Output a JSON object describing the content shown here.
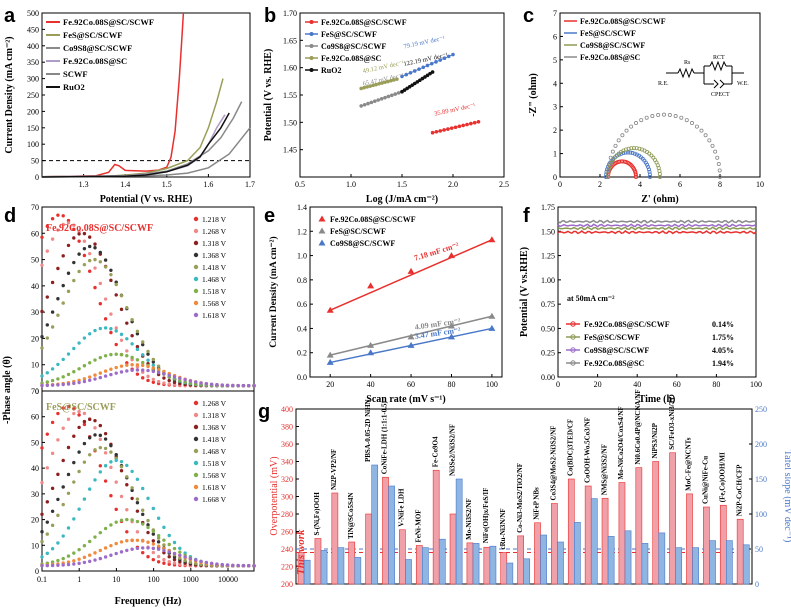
{
  "colors": {
    "red": "#e8302e",
    "blue": "#4a78c9",
    "green": "#8c9a55",
    "gray": "#8a8a8a",
    "black": "#111111",
    "pink": "#f0a0a8",
    "lblue": "#7aaee0",
    "purple": "#9c6cc8",
    "orange": "#f08a3c",
    "teal": "#3cb8c0"
  },
  "panels": {
    "a": "a",
    "b": "b",
    "c": "c",
    "d": "d",
    "e": "e",
    "f": "f",
    "g": "g"
  },
  "chart_data": [
    {
      "id": "a",
      "type": "line",
      "xlabel": "Potential (V vs. RHE)",
      "ylabel": "Current Density (mA cm⁻²)",
      "xlim": [
        1.2,
        1.7
      ],
      "ylim": [
        0,
        500
      ],
      "xticks": [
        1.3,
        1.4,
        1.5,
        1.6,
        1.7
      ],
      "yticks": [
        0,
        50,
        100,
        150,
        200,
        250,
        300,
        350,
        400,
        450,
        500
      ],
      "ref_line": 50,
      "series": [
        {
          "name": "Fe.92Co.08S@SC/SCWF",
          "color": "#e8302e",
          "points": [
            [
              1.2,
              1
            ],
            [
              1.33,
              4
            ],
            [
              1.36,
              14
            ],
            [
              1.375,
              38
            ],
            [
              1.385,
              34
            ],
            [
              1.4,
              20
            ],
            [
              1.45,
              18
            ],
            [
              1.48,
              21
            ],
            [
              1.5,
              30
            ],
            [
              1.51,
              60
            ],
            [
              1.52,
              140
            ],
            [
              1.53,
              300
            ],
            [
              1.535,
              400
            ],
            [
              1.54,
              500
            ]
          ]
        },
        {
          "name": "FeS@SC/SCWF",
          "color": "#9a9e58",
          "points": [
            [
              1.2,
              1
            ],
            [
              1.36,
              2
            ],
            [
              1.4,
              6
            ],
            [
              1.45,
              12
            ],
            [
              1.5,
              26
            ],
            [
              1.55,
              50
            ],
            [
              1.58,
              90
            ],
            [
              1.6,
              150
            ],
            [
              1.62,
              230
            ],
            [
              1.635,
              300
            ]
          ]
        },
        {
          "name": "Co9S8@SC/SCWF",
          "color": "#8a8a8a",
          "points": [
            [
              1.2,
              1
            ],
            [
              1.4,
              4
            ],
            [
              1.45,
              9
            ],
            [
              1.5,
              18
            ],
            [
              1.55,
              40
            ],
            [
              1.6,
              80
            ],
            [
              1.63,
              120
            ],
            [
              1.66,
              180
            ],
            [
              1.68,
              230
            ]
          ]
        },
        {
          "name": "Fe.92Co.08S@SC",
          "color": "#b09cc8",
          "points": [
            [
              1.2,
              1
            ],
            [
              1.4,
              3
            ],
            [
              1.45,
              8
            ],
            [
              1.5,
              16
            ],
            [
              1.55,
              34
            ],
            [
              1.58,
              60
            ],
            [
              1.6,
              100
            ],
            [
              1.62,
              150
            ],
            [
              1.64,
              190
            ]
          ]
        },
        {
          "name": "SCWF",
          "color": "#888888",
          "points": [
            [
              1.2,
              0
            ],
            [
              1.4,
              2
            ],
            [
              1.5,
              6
            ],
            [
              1.55,
              12
            ],
            [
              1.6,
              28
            ],
            [
              1.65,
              70
            ],
            [
              1.7,
              150
            ]
          ]
        },
        {
          "name": "RuO2",
          "color": "#111111",
          "points": [
            [
              1.2,
              0
            ],
            [
              1.4,
              2
            ],
            [
              1.45,
              6
            ],
            [
              1.5,
              16
            ],
            [
              1.55,
              36
            ],
            [
              1.58,
              62
            ],
            [
              1.6,
              100
            ],
            [
              1.63,
              150
            ],
            [
              1.65,
              195
            ]
          ]
        }
      ]
    },
    {
      "id": "b",
      "type": "scatter",
      "xlabel": "Log (J/mA cm⁻²)",
      "ylabel": "Potential (V vs. RHE)",
      "xlim": [
        0.5,
        2.5
      ],
      "ylim": [
        1.4,
        1.7
      ],
      "xticks": [
        0.5,
        1.0,
        1.5,
        2.0,
        2.5
      ],
      "yticks": [
        1.45,
        1.5,
        1.55,
        1.6,
        1.65,
        1.7
      ],
      "series": [
        {
          "name": "Fe.92Co.08S@SC/SCWF",
          "color": "#e8302e",
          "x0": 1.8,
          "x1": 2.25,
          "y0": 1.481,
          "y1": 1.501,
          "slope_label": "35.89 mV dec⁻¹"
        },
        {
          "name": "FeS@SC/SCWF",
          "color": "#4a78c9",
          "x0": 1.5,
          "x1": 2.0,
          "y0": 1.584,
          "y1": 1.624,
          "slope_label": "79.19 mV dec⁻¹"
        },
        {
          "name": "Co9S8@SC/SCWF",
          "color": "#8a8a8a",
          "x0": 1.1,
          "x1": 1.5,
          "y0": 1.53,
          "y1": 1.556,
          "slope_label": "65.47 mV dec⁻¹"
        },
        {
          "name": "Fe.92Co.08S@SC",
          "color": "#9a9e58",
          "x0": 1.1,
          "x1": 1.45,
          "y0": 1.562,
          "y1": 1.579,
          "slope_label": "49.12 mV dec⁻¹"
        },
        {
          "name": "RuO2",
          "color": "#111111",
          "x0": 1.5,
          "x1": 1.8,
          "y0": 1.556,
          "y1": 1.592,
          "slope_label": "122.19 mV dec⁻¹"
        }
      ]
    },
    {
      "id": "c",
      "type": "scatter",
      "xlabel": "Z' (ohm)",
      "ylabel": "-Z\" (ohm)",
      "xlim": [
        0,
        10
      ],
      "ylim": [
        0,
        7
      ],
      "xticks": [
        0,
        2,
        4,
        6,
        8,
        10
      ],
      "yticks": [
        0,
        1,
        2,
        3,
        4,
        5,
        6,
        7
      ],
      "circuit": {
        "rs": "Rs",
        "rct": "RCT",
        "cpe": "CPECT",
        "re": "R.E.",
        "we": "W.E."
      },
      "series": [
        {
          "name": "Fe.92Co.08S@SC/SCWF",
          "color": "#e8302e",
          "r0": 2.4,
          "r1": 3.8
        },
        {
          "name": "FeS@SC/SCWF",
          "color": "#4a78c9",
          "r0": 2.3,
          "r1": 4.5
        },
        {
          "name": "Co9S8@SC/SCWF",
          "color": "#8c9a55",
          "r0": 2.4,
          "r1": 5.0
        },
        {
          "name": "Fe.92Co.08S@SC",
          "color": "#8a8a8a",
          "r0": 2.4,
          "r1": 8.0
        }
      ]
    },
    {
      "id": "d",
      "type": "scatter",
      "xlabel": "Frequency (Hz)",
      "ylabel": "-Phase angle (θ)",
      "xlim_log": [
        0.1,
        50000
      ],
      "ylim": [
        0,
        70
      ],
      "xticks": [
        "0.1",
        "1",
        "10",
        "100",
        "1000",
        "10000"
      ],
      "yticks": [
        0,
        10,
        20,
        30,
        40,
        50,
        60,
        70
      ],
      "top_title": "Fe.92Co.08S@SC/SCWF",
      "bottom_title": "FeS@SC/SCWF",
      "top_voltages": [
        "1.218 V",
        "1.268 V",
        "1.318 V",
        "1.368 V",
        "1.418 V",
        "1.468 V",
        "1.518 V",
        "1.568 V",
        "1.618 V"
      ],
      "bottom_voltages": [
        "1.268 V",
        "1.318 V",
        "1.368 V",
        "1.418 V",
        "1.468 V",
        "1.518 V",
        "1.568 V",
        "1.618 V",
        "1.668 V"
      ],
      "top_peaks": [
        [
          0.3,
          65
        ],
        [
          0.5,
          62
        ],
        [
          1.2,
          58
        ],
        [
          2,
          53
        ],
        [
          2.5,
          48
        ],
        [
          5,
          22
        ],
        [
          10,
          12
        ],
        [
          30,
          8
        ],
        [
          40,
          6
        ]
      ],
      "bottom_peaks": [
        [
          0.5,
          62
        ],
        [
          1,
          60
        ],
        [
          2,
          57
        ],
        [
          3,
          51
        ],
        [
          4,
          46
        ],
        [
          10,
          41
        ],
        [
          20,
          18
        ],
        [
          30,
          10
        ],
        [
          60,
          7
        ]
      ]
    },
    {
      "id": "e",
      "type": "scatter",
      "xlabel": "Scan rate (mV s⁻¹)",
      "ylabel": "Current Density (mA cm⁻²)",
      "xlim": [
        10,
        105
      ],
      "ylim": [
        0,
        1.4
      ],
      "xticks": [
        20,
        40,
        60,
        80,
        100
      ],
      "yticks": [
        0.0,
        0.2,
        0.4,
        0.6,
        0.8,
        1.0,
        1.2,
        1.4
      ],
      "series": [
        {
          "name": "Fe.92Co.08S@SC/SCWF",
          "color": "#e8302e",
          "x": [
            20,
            40,
            60,
            80,
            100
          ],
          "y": [
            0.55,
            0.75,
            0.87,
            1.0,
            1.13
          ],
          "label": "7.18 mF cm⁻²"
        },
        {
          "name": "FeS@SC/SCWF",
          "color": "#8a8a8a",
          "x": [
            20,
            40,
            60,
            80,
            100
          ],
          "y": [
            0.18,
            0.26,
            0.33,
            0.42,
            0.5
          ],
          "label": "4.09 mF cm⁻²"
        },
        {
          "name": "Co9S8@SC/SCWF",
          "color": "#4a78c9",
          "x": [
            20,
            40,
            60,
            80,
            100
          ],
          "y": [
            0.12,
            0.2,
            0.26,
            0.33,
            0.4
          ],
          "label": "3.47 mF cm⁻²"
        }
      ]
    },
    {
      "id": "f",
      "type": "line",
      "xlabel": "Time (h)",
      "ylabel": "Potential (V vs.RHE)",
      "xlim": [
        0,
        100
      ],
      "ylim": [
        0,
        1.75
      ],
      "xticks": [
        0,
        20,
        40,
        60,
        80,
        100
      ],
      "yticks": [
        0.0,
        0.25,
        0.5,
        0.75,
        1.0,
        1.25,
        1.5,
        1.75
      ],
      "annotation": "at 50mA cm⁻²",
      "series": [
        {
          "name": "Fe.92Co.08S@SC/SCWF",
          "color": "#e8302e",
          "level": 1.49,
          "pct": "0.14%"
        },
        {
          "name": "FeS@SC/SCWF",
          "color": "#8c9a55",
          "level": 1.53,
          "pct": "1.75%"
        },
        {
          "name": "Co9S8@SC/SCWF",
          "color": "#9c6cc8",
          "level": 1.56,
          "pct": "4.05%"
        },
        {
          "name": "Fe.92Co.08S@SC",
          "color": "#8a8a8a",
          "level": 1.6,
          "pct": "1.94%"
        }
      ]
    },
    {
      "id": "g",
      "type": "bar",
      "ylabel": "Overpotential (mV)",
      "y2label": "Tafel slope (mV dec⁻¹)",
      "ylim": [
        200,
        400
      ],
      "y2lim": [
        0,
        250
      ],
      "yticks": [
        200,
        220,
        240,
        260,
        280,
        300,
        320,
        340,
        360,
        380,
        400
      ],
      "y2ticks": [
        0,
        50,
        100,
        150,
        200,
        250
      ],
      "ref_overpotential": 236,
      "ref_tafel": 50,
      "this_work_label": "This work",
      "categories": [
        "This work",
        "S-(Ni,Fe)OOH",
        "Ni2P-VP2/NF",
        "TiN@SCo5S4N",
        "PBSA-0.05-2D NiHN",
        "CoNiFe-LDH (1:1:1-0.5)",
        "V-NiFe LDH",
        "FeNi-MOF",
        "Fe-Co9O4",
        "Ni3Se2/Ni3S2/NF",
        "Mo-Ni3S2/NF",
        "NiFe(OH)x/FeS/IF",
        "cRu-Ni3N/NF",
        "Co-Ni3-MoS2/TiO2/NF",
        "NiFeP NBs",
        "Co3S4@MoS2-Ni3S2/NF",
        "Co(BDC)3TED/CF",
        "CoOOH-Wo.5Co3/NF",
        "NMS@Ni3S2/NF",
        "Mo-NiCo2O4/CoxS4/NF",
        "Ni0.6Co0.4P@NCNA/NF",
        "NiPS3/Ni2P",
        "SC/FeO3-xNi3/TO",
        "MoC-Fe@NCNTs",
        "CuNi@NiFe-Cu",
        "(Fe,Co)OOH/MI",
        "Ni2P-CoCH/CFP"
      ],
      "overpotential": [
        236,
        252,
        304,
        248,
        280,
        322,
        262,
        244,
        330,
        280,
        247,
        242,
        236,
        255,
        270,
        292,
        320,
        312,
        298,
        316,
        333,
        340,
        350,
        303,
        288,
        290,
        274
      ],
      "tafel": [
        34,
        48,
        52,
        38,
        170,
        140,
        35,
        52,
        64,
        150,
        58,
        54,
        30,
        36,
        70,
        60,
        88,
        122,
        68,
        76,
        58,
        73,
        52,
        52,
        62,
        62,
        56
      ]
    }
  ]
}
